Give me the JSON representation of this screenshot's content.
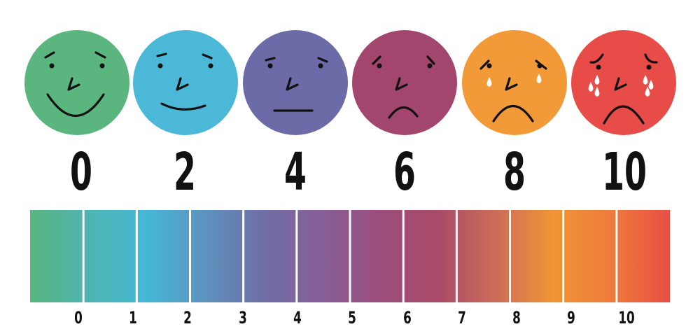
{
  "faces": [
    {
      "label": "0",
      "color": "#5bb57e",
      "expression": "big-smile"
    },
    {
      "label": "2",
      "color": "#4bb8d8",
      "expression": "smile"
    },
    {
      "label": "4",
      "color": "#6d6aa8",
      "expression": "neutral"
    },
    {
      "label": "6",
      "color": "#a3466e",
      "expression": "frown"
    },
    {
      "label": "8",
      "color": "#f29a38",
      "expression": "crying"
    },
    {
      "label": "10",
      "color": "#e84c48",
      "expression": "sobbing"
    }
  ],
  "scale_bar": {
    "colors": [
      "#58b47e",
      "#4fb5b2",
      "#45b7d6",
      "#5d93bf",
      "#6f6ea6",
      "#875f98",
      "#9b4e7b",
      "#a94a68",
      "#cc6c5a",
      "#ef9534",
      "#ee7a3c",
      "#e84f44"
    ],
    "tick_labels": [
      "0",
      "1",
      "2",
      "3",
      "4",
      "5",
      "6",
      "7",
      "8",
      "9",
      "10"
    ]
  }
}
